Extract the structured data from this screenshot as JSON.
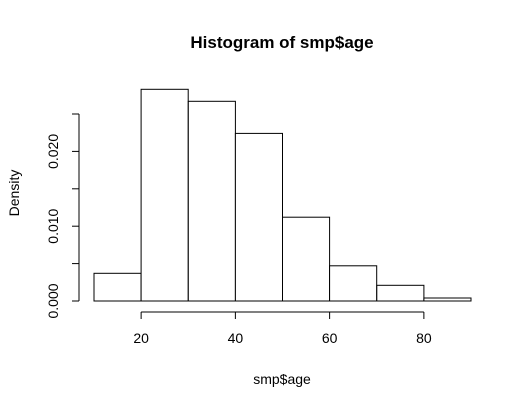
{
  "chart_data": {
    "type": "bar",
    "title": "Histogram of smp$age",
    "xlabel": "smp$age",
    "ylabel": "Density",
    "bins": [
      {
        "start": 10,
        "end": 20,
        "density": 0.0037
      },
      {
        "start": 20,
        "end": 30,
        "density": 0.0283
      },
      {
        "start": 30,
        "end": 40,
        "density": 0.0267
      },
      {
        "start": 40,
        "end": 50,
        "density": 0.0224
      },
      {
        "start": 50,
        "end": 60,
        "density": 0.0112
      },
      {
        "start": 60,
        "end": 70,
        "density": 0.0047
      },
      {
        "start": 70,
        "end": 80,
        "density": 0.0021
      },
      {
        "start": 80,
        "end": 90,
        "density": 0.0004
      }
    ],
    "xlim": [
      10,
      90
    ],
    "ylim": [
      0,
      0.025
    ],
    "x_ticks": [
      {
        "value": 20,
        "label": "20"
      },
      {
        "value": 40,
        "label": "40"
      },
      {
        "value": 60,
        "label": "60"
      },
      {
        "value": 80,
        "label": "80"
      }
    ],
    "y_ticks": [
      {
        "value": 0.0,
        "label": "0.000"
      },
      {
        "value": 0.005,
        "label": ""
      },
      {
        "value": 0.01,
        "label": "0.010"
      },
      {
        "value": 0.015,
        "label": ""
      },
      {
        "value": 0.02,
        "label": "0.020"
      },
      {
        "value": 0.025,
        "label": ""
      }
    ],
    "grid": false,
    "legend": "none",
    "colors": {
      "bar_fill": "#ffffff",
      "bar_stroke": "#000000"
    }
  }
}
